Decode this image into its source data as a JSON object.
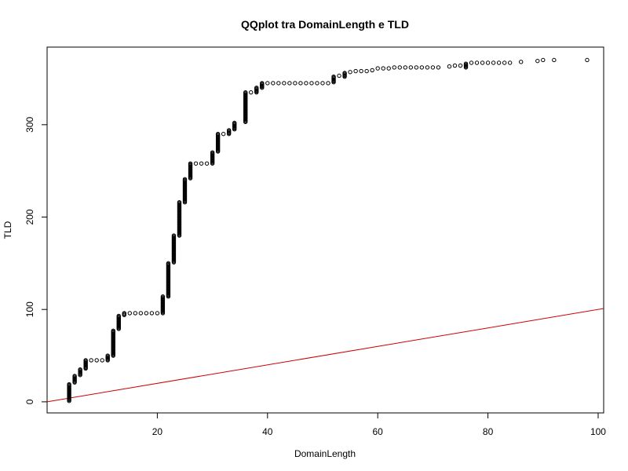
{
  "chart_data": {
    "type": "scatter",
    "title": "QQplot tra DomainLength e TLD",
    "xlabel": "DomainLength",
    "ylabel": "TLD",
    "xlim": [
      0,
      101
    ],
    "ylim": [
      -12,
      384
    ],
    "x_ticks": [
      20,
      40,
      60,
      80,
      100
    ],
    "y_ticks": [
      0,
      100,
      200,
      300
    ],
    "grid": false,
    "legend": "none",
    "colors": {
      "points": "#000000",
      "reference_line": "#cc0000",
      "frame": "#000000"
    },
    "reference_line": {
      "name": "",
      "intercept": 0,
      "slope": 1
    },
    "point_clusters": [
      {
        "x": 4,
        "y_min": 1,
        "y_max": 19
      },
      {
        "x": 5,
        "y_min": 21,
        "y_max": 28
      },
      {
        "x": 6,
        "y_min": 29,
        "y_max": 35
      },
      {
        "x": 7,
        "y_min": 36,
        "y_max": 45
      },
      {
        "x": 11,
        "y_min": 45,
        "y_max": 50
      },
      {
        "x": 12,
        "y_min": 50,
        "y_max": 77
      },
      {
        "x": 13,
        "y_min": 79,
        "y_max": 93
      },
      {
        "x": 14,
        "y_min": 94,
        "y_max": 96
      },
      {
        "x": 21,
        "y_min": 96,
        "y_max": 114
      },
      {
        "x": 22,
        "y_min": 114,
        "y_max": 150
      },
      {
        "x": 23,
        "y_min": 151,
        "y_max": 180
      },
      {
        "x": 24,
        "y_min": 180,
        "y_max": 216
      },
      {
        "x": 25,
        "y_min": 216,
        "y_max": 241
      },
      {
        "x": 26,
        "y_min": 242,
        "y_max": 258
      },
      {
        "x": 30,
        "y_min": 258,
        "y_max": 270
      },
      {
        "x": 31,
        "y_min": 271,
        "y_max": 290
      },
      {
        "x": 33,
        "y_min": 290,
        "y_max": 294
      },
      {
        "x": 34,
        "y_min": 295,
        "y_max": 302
      },
      {
        "x": 36,
        "y_min": 303,
        "y_max": 335
      },
      {
        "x": 38,
        "y_min": 335,
        "y_max": 340
      },
      {
        "x": 39,
        "y_min": 340,
        "y_max": 345
      },
      {
        "x": 52,
        "y_min": 346,
        "y_max": 352
      },
      {
        "x": 54,
        "y_min": 352,
        "y_max": 356
      },
      {
        "x": 76,
        "y_min": 362,
        "y_max": 366
      }
    ],
    "points": [
      [
        15,
        96
      ],
      [
        16,
        96
      ],
      [
        17,
        96
      ],
      [
        18,
        96
      ],
      [
        19,
        96
      ],
      [
        20,
        96
      ],
      [
        8,
        45
      ],
      [
        9,
        45
      ],
      [
        10,
        45
      ],
      [
        27,
        258
      ],
      [
        28,
        258
      ],
      [
        29,
        258
      ],
      [
        32,
        290
      ],
      [
        37,
        335
      ],
      [
        40,
        345
      ],
      [
        41,
        345
      ],
      [
        42,
        345
      ],
      [
        43,
        345
      ],
      [
        44,
        345
      ],
      [
        45,
        345
      ],
      [
        46,
        345
      ],
      [
        47,
        345
      ],
      [
        48,
        345
      ],
      [
        49,
        345
      ],
      [
        50,
        345
      ],
      [
        51,
        345
      ],
      [
        53,
        353
      ],
      [
        55,
        357
      ],
      [
        56,
        358
      ],
      [
        57,
        358
      ],
      [
        58,
        358
      ],
      [
        59,
        359
      ],
      [
        60,
        361
      ],
      [
        61,
        361
      ],
      [
        62,
        361
      ],
      [
        63,
        362
      ],
      [
        64,
        362
      ],
      [
        65,
        362
      ],
      [
        66,
        362
      ],
      [
        67,
        362
      ],
      [
        68,
        362
      ],
      [
        69,
        362
      ],
      [
        70,
        362
      ],
      [
        71,
        362
      ],
      [
        73,
        363
      ],
      [
        74,
        364
      ],
      [
        75,
        364
      ],
      [
        77,
        367
      ],
      [
        78,
        367
      ],
      [
        79,
        367
      ],
      [
        80,
        367
      ],
      [
        81,
        367
      ],
      [
        82,
        367
      ],
      [
        83,
        367
      ],
      [
        84,
        367
      ],
      [
        86,
        368
      ],
      [
        89,
        369
      ],
      [
        90,
        370
      ],
      [
        92,
        370
      ],
      [
        98,
        370
      ]
    ]
  }
}
